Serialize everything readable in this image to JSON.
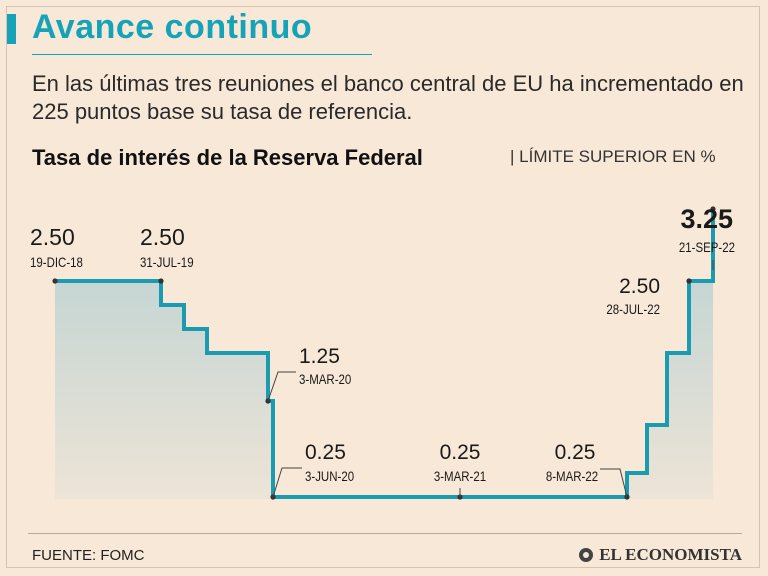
{
  "header": {
    "title": "Avance continuo",
    "subtitle": "En las últimas tres reuniones el banco central de EU ha incrementado en 225 puntos base su tasa de referencia.",
    "chart_title": "Tasa de interés de la Reserva Federal",
    "chart_unit": "LÍMITE SUPERIOR EN %"
  },
  "footer": {
    "source": "FUENTE: FOMC",
    "brand": "EL ECONOMISTA"
  },
  "colors": {
    "accent": "#16a3b7",
    "line": "#1b9bb0",
    "area": "#aecdd1",
    "background": "#f8e8d8",
    "text": "#1a1a1a"
  },
  "chart_data": {
    "type": "area",
    "title": "Tasa de interés de la Reserva Federal",
    "ylabel": "LÍMITE SUPERIOR EN %",
    "ylim": [
      0,
      3.25
    ],
    "steps": [
      2.5,
      2.25,
      2.0,
      1.75,
      1.25,
      0.25,
      0.25,
      0.25,
      0.5,
      1.0,
      1.75,
      2.5,
      3.25
    ],
    "labels": [
      {
        "value": "2.50",
        "date": "19-DIC-18",
        "step": 0
      },
      {
        "value": "2.50",
        "date": "31-JUL-19",
        "step": 0
      },
      {
        "value": "1.25",
        "date": "3-MAR-20",
        "step": 4
      },
      {
        "value": "0.25",
        "date": "3-JUN-20",
        "step": 5
      },
      {
        "value": "0.25",
        "date": "3-MAR-21",
        "step": 6
      },
      {
        "value": "0.25",
        "date": "8-MAR-22",
        "step": 7
      },
      {
        "value": "2.50",
        "date": "28-JUL-22",
        "step": 11
      },
      {
        "value": "3.25",
        "date": "21-SEP-22",
        "step": 12
      }
    ]
  }
}
